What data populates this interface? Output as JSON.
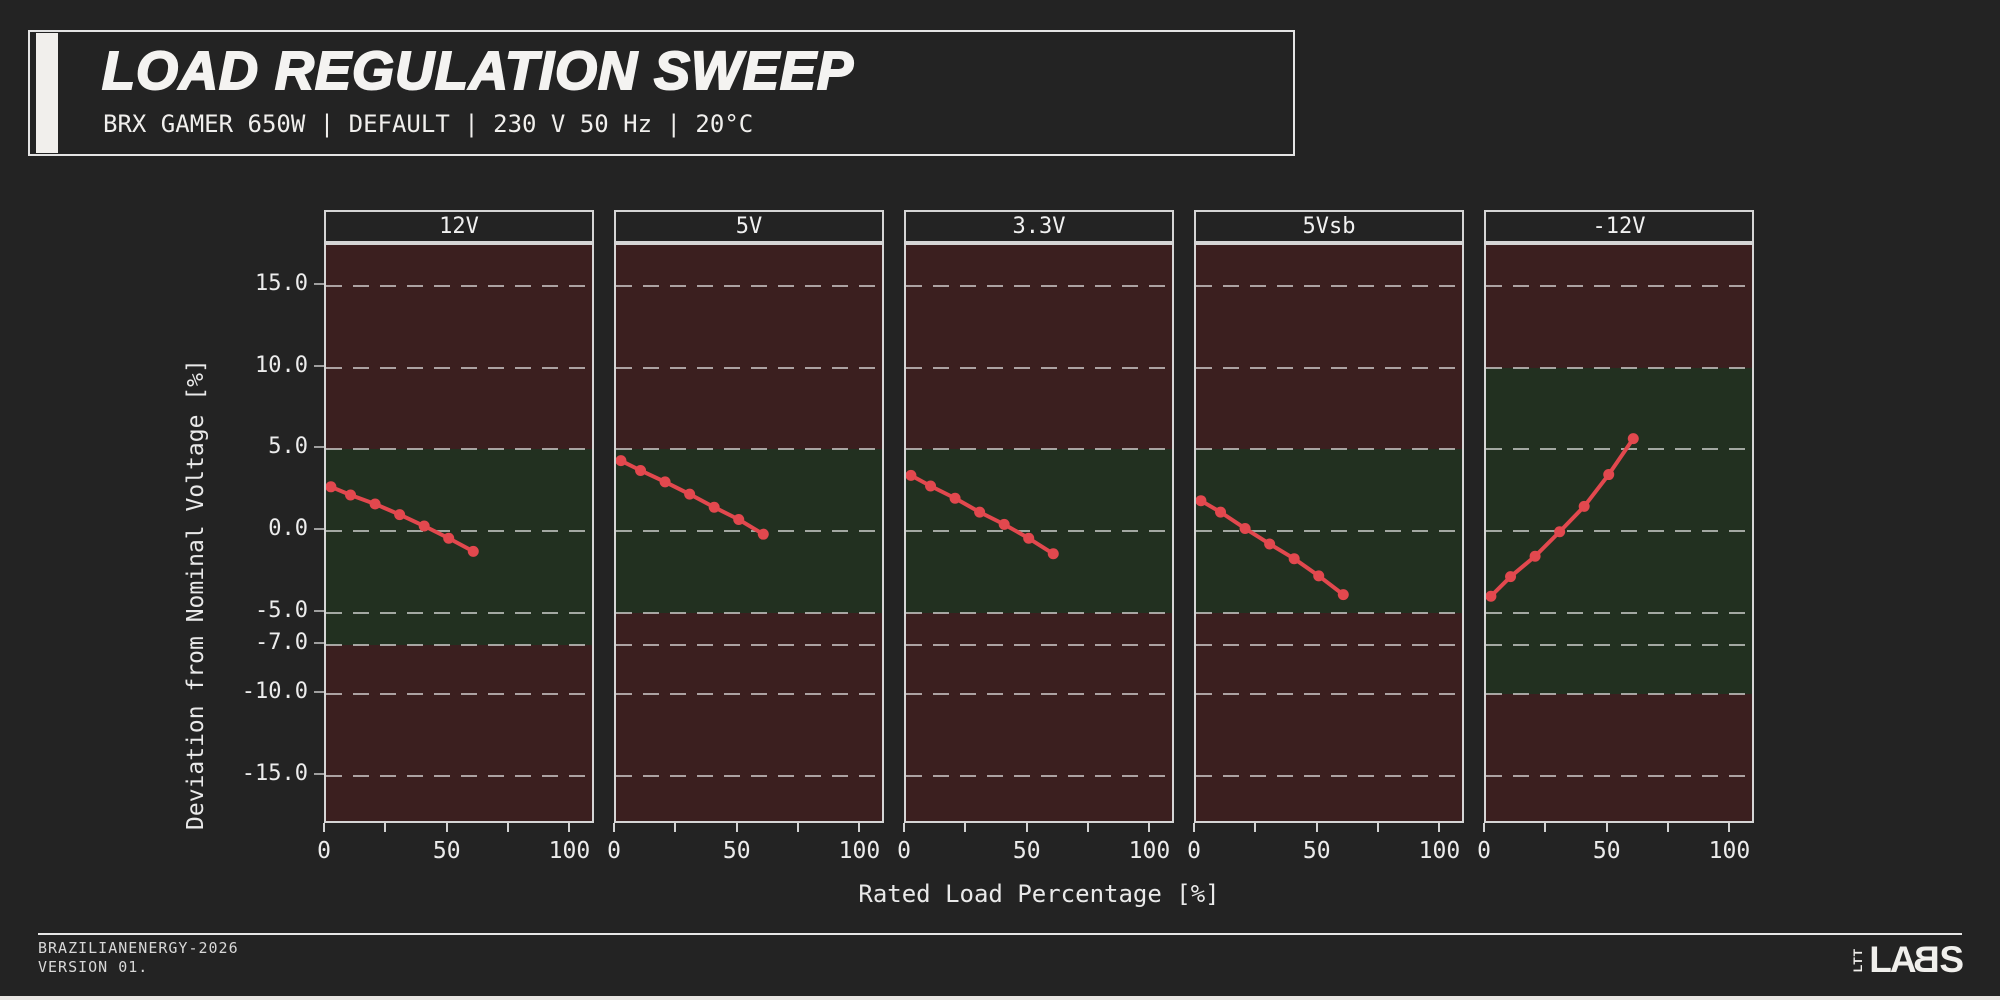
{
  "header": {
    "title": "LOAD REGULATION SWEEP",
    "subtitle": "BRX GAMER 650W | DEFAULT | 230 V 50 Hz | 20°C"
  },
  "chart_data": {
    "type": "line",
    "xlabel": "Rated Load Percentage [%]",
    "ylabel": "Deviation from Nominal Voltage [%]",
    "x": [
      2,
      10,
      20,
      30,
      40,
      50,
      60
    ],
    "xlim": [
      0,
      110
    ],
    "ylim": [
      -18,
      17.5
    ],
    "x_ticks": [
      0,
      25,
      50,
      75,
      100
    ],
    "x_tick_labels": [
      {
        "value": 0,
        "label": "0"
      },
      {
        "value": 50,
        "label": "50"
      },
      {
        "value": 100,
        "label": "100"
      }
    ],
    "y_gridlines": [
      15,
      10,
      5,
      0,
      -5,
      -7,
      -10,
      -15
    ],
    "y_tick_labels": [
      "15.0",
      "10.0",
      "5.0",
      "0.0",
      "-5.0",
      "-7.0",
      "-10.0",
      "-15.0"
    ],
    "grid": true,
    "legend": "none",
    "series": [
      {
        "name": "12V",
        "green_band": [
          5,
          -7
        ],
        "values": [
          2.7,
          2.2,
          1.65,
          1.0,
          0.3,
          -0.45,
          -1.25
        ]
      },
      {
        "name": "5V",
        "green_band": [
          5,
          -5
        ],
        "values": [
          4.3,
          3.7,
          3.0,
          2.25,
          1.45,
          0.7,
          -0.2
        ]
      },
      {
        "name": "3.3V",
        "green_band": [
          5,
          -5
        ],
        "values": [
          3.4,
          2.75,
          2.0,
          1.15,
          0.4,
          -0.45,
          -1.4
        ]
      },
      {
        "name": "5Vsb",
        "green_band": [
          5,
          -5
        ],
        "values": [
          1.85,
          1.15,
          0.15,
          -0.8,
          -1.7,
          -2.75,
          -3.9
        ]
      },
      {
        "name": "-12V",
        "green_band": [
          10,
          -10
        ],
        "values": [
          -4.0,
          -2.8,
          -1.55,
          -0.05,
          1.5,
          3.45,
          5.65
        ]
      }
    ],
    "colors": {
      "line": "#e2484e",
      "pass_band": "#223020",
      "fail_band": "#3b1f1f",
      "background": "#232323",
      "panel_border": "#d5d5d5"
    }
  },
  "footer": {
    "meta_line1": "BRAZILIANENERGY-2026",
    "meta_line2": "VERSION 01.",
    "logo_small": "LTT",
    "logo_main": "LABS"
  }
}
